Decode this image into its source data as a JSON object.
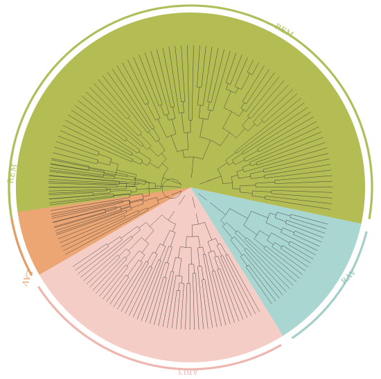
{
  "figure": {
    "colors": {
      "REM": "#b3bd54",
      "RAV": "#a9d6d0",
      "ABI3": "#f5cdc7",
      "LAV": "#eba673",
      "ring_REM": "#aebf5a",
      "ring_RAV": "#a4cfc9",
      "ring_ABI3": "#efb6b0",
      "ring_LAV": "#e69c64",
      "branch": "#333333"
    },
    "clades": [
      {
        "name": "REM",
        "label": "REM"
      },
      {
        "name": "RAV",
        "label": "RAV"
      },
      {
        "name": "ABI3",
        "label": "ABI3"
      },
      {
        "name": "LAV",
        "label": "LAV"
      },
      {
        "name": "REM2",
        "label": "REM"
      }
    ]
  }
}
